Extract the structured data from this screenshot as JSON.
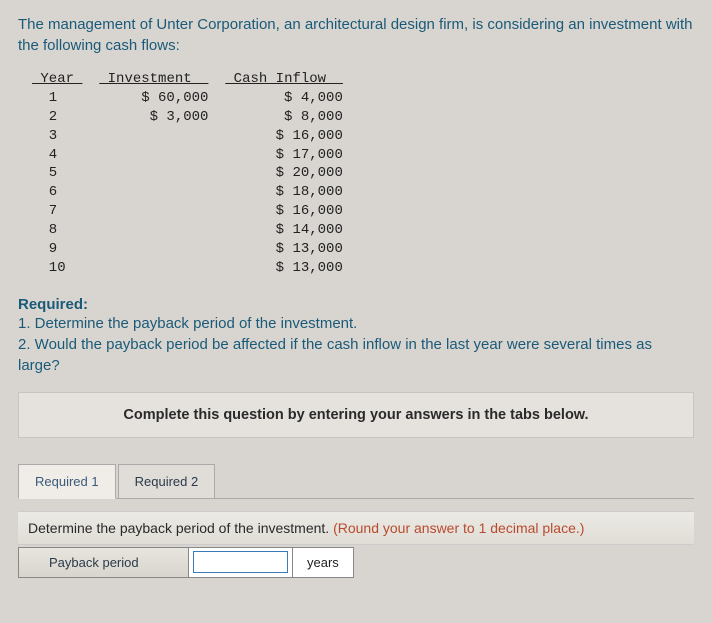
{
  "intro": "The management of Unter Corporation, an architectural design firm, is considering an investment with the following cash flows:",
  "table": {
    "headers": {
      "year": "Year",
      "investment": "Investment",
      "cashInflow": "Cash Inflow"
    },
    "rows": [
      {
        "year": "1",
        "investment": "$ 60,000",
        "cashInflow": "$ 4,000"
      },
      {
        "year": "2",
        "investment": "$ 3,000",
        "cashInflow": "$ 8,000"
      },
      {
        "year": "3",
        "investment": "",
        "cashInflow": "$ 16,000"
      },
      {
        "year": "4",
        "investment": "",
        "cashInflow": "$ 17,000"
      },
      {
        "year": "5",
        "investment": "",
        "cashInflow": "$ 20,000"
      },
      {
        "year": "6",
        "investment": "",
        "cashInflow": "$ 18,000"
      },
      {
        "year": "7",
        "investment": "",
        "cashInflow": "$ 16,000"
      },
      {
        "year": "8",
        "investment": "",
        "cashInflow": "$ 14,000"
      },
      {
        "year": "9",
        "investment": "",
        "cashInflow": "$ 13,000"
      },
      {
        "year": "10",
        "investment": "",
        "cashInflow": "$ 13,000"
      }
    ],
    "colWidths": {
      "year": 6,
      "investment": 13,
      "cashInflow": 14
    }
  },
  "required": {
    "title": "Required:",
    "items": [
      "1. Determine the payback period of the investment.",
      "2. Would the payback period be affected if the cash inflow in the last year were several times as large?"
    ]
  },
  "instruction": "Complete this question by entering your answers in the tabs below.",
  "tabs": {
    "items": [
      {
        "label": "Required 1",
        "active": true
      },
      {
        "label": "Required 2",
        "active": false
      }
    ]
  },
  "tabContent": {
    "promptMain": "Determine the payback period of the investment. ",
    "promptHint": "(Round your answer to 1 decimal place.)",
    "answerLabel": "Payback period",
    "answerUnit": "years"
  },
  "colors": {
    "pageBg": "#d8d5d0",
    "linkText": "#1a5a78",
    "hintText": "#b94a2e"
  }
}
